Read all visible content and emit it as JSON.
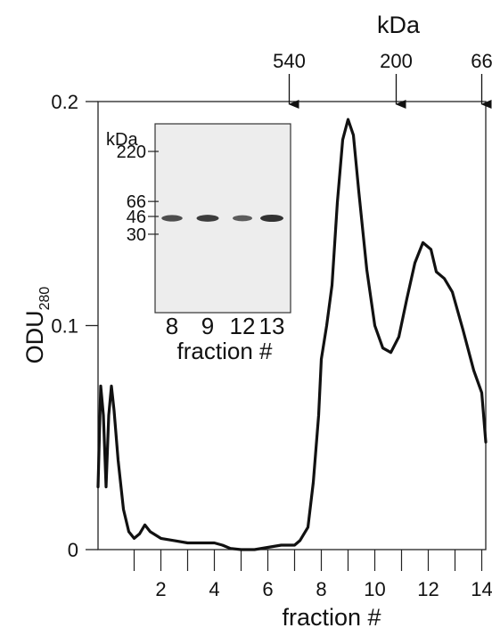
{
  "chart_data": {
    "type": "line",
    "title": "",
    "xlabel": "fraction #",
    "ylabel": "ODU",
    "ylabel_subscript": "280",
    "xlim": [
      -0.35,
      14.15
    ],
    "ylim": [
      0,
      0.2
    ],
    "x_ticks": [
      {
        "value": 2,
        "label": "2"
      },
      {
        "value": 4,
        "label": "4"
      },
      {
        "value": 6,
        "label": "6"
      },
      {
        "value": 8,
        "label": "8"
      },
      {
        "value": 10,
        "label": "10"
      },
      {
        "value": 12,
        "label": "12"
      },
      {
        "value": 14,
        "label": "14"
      }
    ],
    "x_minor_ticks": [
      1,
      2,
      3,
      4,
      5,
      6,
      7,
      8,
      9,
      10,
      11,
      12,
      13,
      14
    ],
    "y_ticks": [
      {
        "value": 0,
        "label": "0"
      },
      {
        "value": 0.1,
        "label": "0.1"
      },
      {
        "value": 0.2,
        "label": "0.2"
      }
    ],
    "marker_axis_title": "kDa",
    "markers": [
      {
        "label": "540",
        "x": 6.8
      },
      {
        "label": "200",
        "x": 10.8
      },
      {
        "label": "66",
        "x": 14.0
      }
    ],
    "series": [
      {
        "color": "#111111",
        "points": [
          [
            -0.35,
            0.028
          ],
          [
            -0.25,
            0.073
          ],
          [
            -0.15,
            0.06
          ],
          [
            -0.05,
            0.028
          ],
          [
            0.05,
            0.06
          ],
          [
            0.15,
            0.073
          ],
          [
            0.25,
            0.062
          ],
          [
            0.4,
            0.04
          ],
          [
            0.6,
            0.018
          ],
          [
            0.8,
            0.008
          ],
          [
            1.0,
            0.005
          ],
          [
            1.2,
            0.007
          ],
          [
            1.4,
            0.011
          ],
          [
            1.6,
            0.008
          ],
          [
            2.0,
            0.005
          ],
          [
            2.5,
            0.004
          ],
          [
            3.0,
            0.003
          ],
          [
            3.5,
            0.003
          ],
          [
            4.0,
            0.003
          ],
          [
            4.3,
            0.002
          ],
          [
            4.6,
            0.0005
          ],
          [
            5.0,
            0.0
          ],
          [
            5.5,
            0.0
          ],
          [
            6.0,
            0.001
          ],
          [
            6.5,
            0.002
          ],
          [
            7.0,
            0.002
          ],
          [
            7.2,
            0.004
          ],
          [
            7.5,
            0.01
          ],
          [
            7.7,
            0.03
          ],
          [
            7.9,
            0.06
          ],
          [
            8.0,
            0.085
          ],
          [
            8.2,
            0.1
          ],
          [
            8.4,
            0.118
          ],
          [
            8.6,
            0.155
          ],
          [
            8.8,
            0.183
          ],
          [
            9.0,
            0.192
          ],
          [
            9.2,
            0.185
          ],
          [
            9.4,
            0.16
          ],
          [
            9.7,
            0.125
          ],
          [
            10.0,
            0.1
          ],
          [
            10.3,
            0.09
          ],
          [
            10.6,
            0.088
          ],
          [
            10.9,
            0.095
          ],
          [
            11.2,
            0.112
          ],
          [
            11.5,
            0.128
          ],
          [
            11.8,
            0.137
          ],
          [
            12.1,
            0.134
          ],
          [
            12.3,
            0.124
          ],
          [
            12.6,
            0.121
          ],
          [
            12.9,
            0.115
          ],
          [
            13.3,
            0.098
          ],
          [
            13.7,
            0.08
          ],
          [
            14.0,
            0.07
          ],
          [
            14.15,
            0.048
          ]
        ]
      }
    ],
    "grid": false,
    "legend": "none"
  },
  "inset": {
    "unit_label": "kDa",
    "mw_markers": [
      {
        "label": "220",
        "kda": 220
      },
      {
        "label": "66",
        "kda": 66
      },
      {
        "label": "46",
        "kda": 46
      },
      {
        "label": "30",
        "kda": 30
      }
    ],
    "lanes": [
      {
        "label": "8",
        "band_intensity": 0.75
      },
      {
        "label": "9",
        "band_intensity": 0.9
      },
      {
        "label": "12",
        "band_intensity": 0.6
      },
      {
        "label": "13",
        "band_intensity": 1.0
      }
    ],
    "band_kda": 46,
    "lane_axis_title": "fraction #"
  }
}
